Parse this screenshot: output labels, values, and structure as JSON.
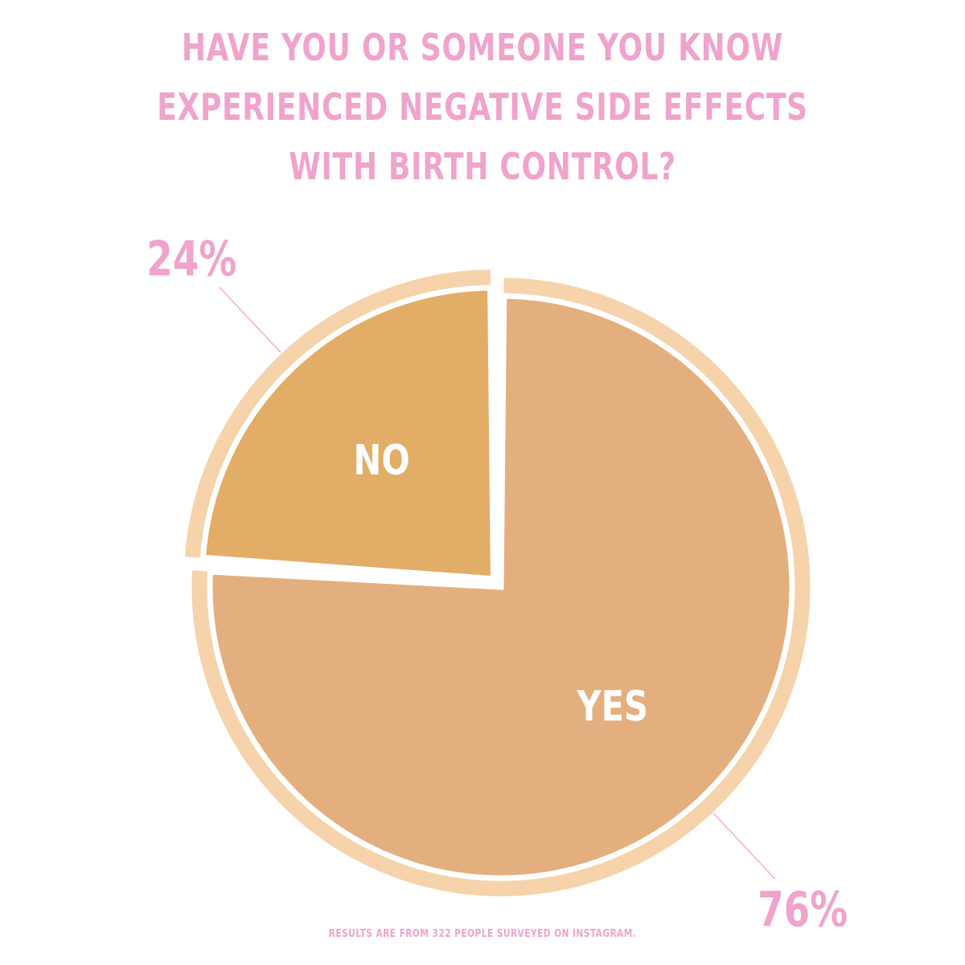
{
  "title_lines": [
    "HAVE YOU OR SOMEONE YOU KNOW",
    "EXPERIENCED NEGATIVE SIDE EFFECTS",
    "WITH BIRTH CONTROL?"
  ],
  "footnote": "RESULTS ARE FROM 322 PEOPLE SURVEYED ON INSTAGRAM.",
  "colors": {
    "text_pink": "#f0a3cc",
    "ring": "#f6d3aa",
    "no_fill": "#e2ad66",
    "yes_fill": "#e4af7e",
    "inner_label": "#ffffff"
  },
  "chart_data": {
    "type": "pie",
    "title": "HAVE YOU OR SOMEONE YOU KNOW EXPERIENCED NEGATIVE SIDE EFFECTS WITH BIRTH CONTROL?",
    "slices": [
      {
        "label": "NO",
        "value": 24,
        "value_label": "24%",
        "exploded": true
      },
      {
        "label": "YES",
        "value": 76,
        "value_label": "76%",
        "exploded": false
      }
    ],
    "legend": "none"
  }
}
